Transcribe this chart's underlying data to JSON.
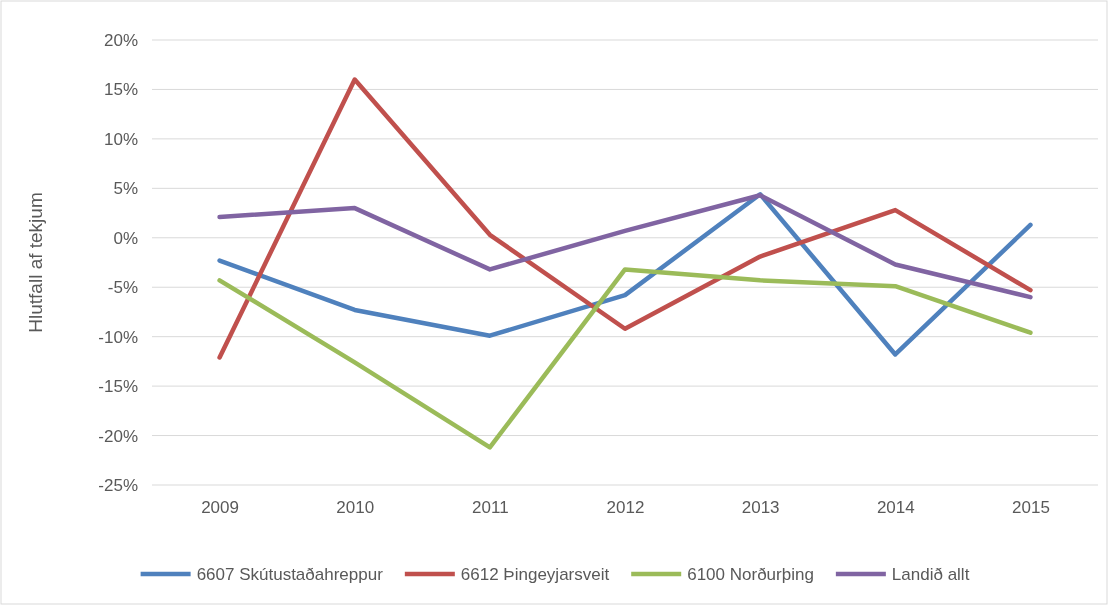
{
  "chart_data": {
    "type": "line",
    "ylabel": "Hlutfall af tekjum",
    "categories": [
      "2009",
      "2010",
      "2011",
      "2012",
      "2013",
      "2014",
      "2015"
    ],
    "series": [
      {
        "name": "6607 Skútustaðahreppur",
        "color": "#4f81bd",
        "values": [
          -2.3,
          -7.3,
          -9.9,
          -5.8,
          4.4,
          -11.8,
          1.3
        ]
      },
      {
        "name": "6612 Þingeyjarsveit",
        "color": "#c0504d",
        "values": [
          -12.1,
          16.0,
          0.3,
          -9.2,
          -1.9,
          2.8,
          -5.3
        ]
      },
      {
        "name": "6100 Norðurþing",
        "color": "#9bbb59",
        "values": [
          -4.3,
          -12.6,
          -21.2,
          -3.2,
          -4.3,
          -4.9,
          -9.6
        ]
      },
      {
        "name": "Landið allt",
        "color": "#8064a2",
        "values": [
          2.1,
          3.0,
          -3.2,
          0.7,
          4.3,
          -2.7,
          -6.0
        ]
      }
    ],
    "ylim": [
      -25,
      20
    ],
    "yticks": [
      {
        "value": -25,
        "label": "-25%"
      },
      {
        "value": -20,
        "label": "-20%"
      },
      {
        "value": -15,
        "label": "-15%"
      },
      {
        "value": -10,
        "label": "-10%"
      },
      {
        "value": -5,
        "label": "-5%"
      },
      {
        "value": 0,
        "label": "0%"
      },
      {
        "value": 5,
        "label": "5%"
      },
      {
        "value": 10,
        "label": "10%"
      },
      {
        "value": 15,
        "label": "15%"
      },
      {
        "value": 20,
        "label": "20%"
      }
    ],
    "grid": "y",
    "legend": "bottom",
    "marker": "none",
    "line_style": "solid"
  }
}
